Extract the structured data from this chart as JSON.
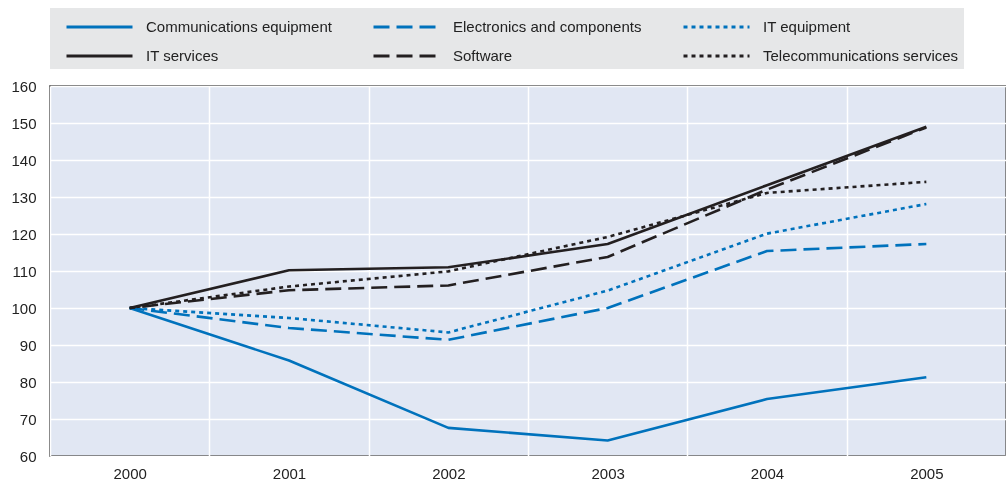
{
  "chart_data": {
    "type": "line",
    "categories": [
      "2000",
      "2001",
      "2002",
      "2003",
      "2004",
      "2005"
    ],
    "ylim": [
      60,
      160
    ],
    "yticks": [
      60,
      70,
      80,
      90,
      100,
      110,
      120,
      130,
      140,
      150,
      160
    ],
    "grid": true,
    "legend": "top",
    "series": [
      {
        "name": "Communications equipment",
        "color": "#0072bc",
        "line_style": "solid",
        "values": [
          100,
          85.8,
          67.6,
          64.2,
          75.4,
          81.3
        ]
      },
      {
        "name": "Electronics and components",
        "color": "#0072bc",
        "line_style": "dashed",
        "values": [
          100,
          94.6,
          91.4,
          100,
          115.4,
          117.3
        ]
      },
      {
        "name": "IT equipment",
        "color": "#0072bc",
        "line_style": "dotted",
        "values": [
          100,
          97.3,
          93.4,
          104.7,
          120.1,
          128.1
        ]
      },
      {
        "name": "IT services",
        "color": "#231f20",
        "line_style": "solid",
        "values": [
          100,
          110.2,
          111,
          117.3,
          133.2,
          149
        ]
      },
      {
        "name": "Software",
        "color": "#231f20",
        "line_style": "dashed",
        "values": [
          100,
          104.8,
          106.1,
          113.8,
          132,
          148.8
        ]
      },
      {
        "name": "Telecommunications services",
        "color": "#231f20",
        "line_style": "dotted",
        "values": [
          100,
          105.8,
          109.9,
          119.2,
          131.1,
          134.1
        ]
      }
    ]
  }
}
